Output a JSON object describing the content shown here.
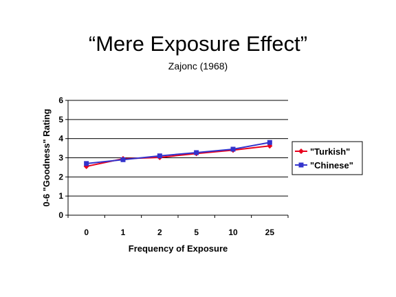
{
  "slide": {
    "title": "“Mere Exposure Effect”",
    "subtitle": "Zajonc (1968)"
  },
  "chart_data": {
    "type": "line",
    "categories": [
      "0",
      "1",
      "2",
      "5",
      "10",
      "25"
    ],
    "series": [
      {
        "name": "\"Turkish\"",
        "color": "#e8001c",
        "marker": "diamond",
        "values": [
          2.55,
          2.95,
          3.02,
          3.22,
          3.4,
          3.62
        ]
      },
      {
        "name": "\"Chinese\"",
        "color": "#3333cc",
        "marker": "square",
        "values": [
          2.7,
          2.9,
          3.1,
          3.27,
          3.45,
          3.8
        ]
      }
    ],
    "xlabel": "Frequency of Exposure",
    "ylabel": "0-6 \"Goodness\" Rating",
    "ylim": [
      0,
      6
    ],
    "yticks": [
      "0",
      "1",
      "2",
      "3",
      "4",
      "5",
      "6"
    ],
    "grid": true,
    "legend_position": "right"
  }
}
